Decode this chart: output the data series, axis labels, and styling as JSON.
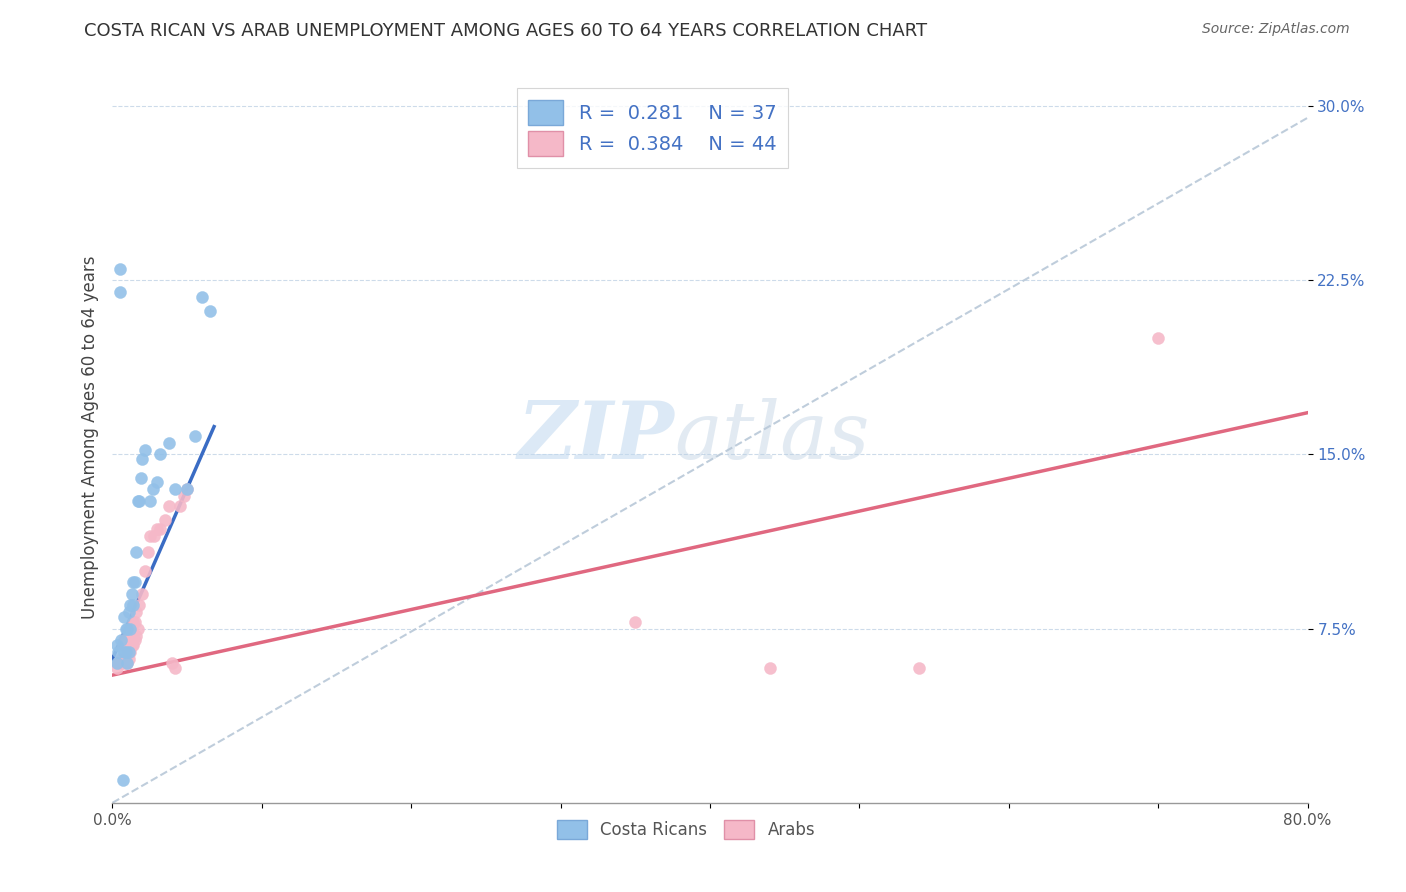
{
  "title": "COSTA RICAN VS ARAB UNEMPLOYMENT AMONG AGES 60 TO 64 YEARS CORRELATION CHART",
  "source": "Source: ZipAtlas.com",
  "ylabel": "Unemployment Among Ages 60 to 64 years",
  "xlim": [
    0.0,
    0.8
  ],
  "ylim": [
    0.0,
    0.315
  ],
  "yticks": [
    0.075,
    0.15,
    0.225,
    0.3
  ],
  "ytick_labels": [
    "7.5%",
    "15.0%",
    "22.5%",
    "30.0%"
  ],
  "watermark_zip": "ZIP",
  "watermark_atlas": "atlas",
  "costa_rican_color": "#92c0e8",
  "arab_color": "#f5b8c8",
  "costa_rican_line_color": "#3a6cc4",
  "arab_line_color": "#e06880",
  "dashed_line_color": "#b8c8d8",
  "costa_rican_points_x": [
    0.003,
    0.003,
    0.004,
    0.005,
    0.005,
    0.006,
    0.007,
    0.008,
    0.008,
    0.009,
    0.009,
    0.01,
    0.01,
    0.011,
    0.011,
    0.012,
    0.012,
    0.013,
    0.014,
    0.014,
    0.015,
    0.016,
    0.017,
    0.018,
    0.019,
    0.02,
    0.022,
    0.025,
    0.027,
    0.03,
    0.032,
    0.038,
    0.042,
    0.05,
    0.055,
    0.06,
    0.065
  ],
  "costa_rican_points_y": [
    0.06,
    0.068,
    0.065,
    0.22,
    0.23,
    0.07,
    0.01,
    0.065,
    0.08,
    0.065,
    0.075,
    0.06,
    0.075,
    0.065,
    0.082,
    0.075,
    0.085,
    0.09,
    0.085,
    0.095,
    0.095,
    0.108,
    0.13,
    0.13,
    0.14,
    0.148,
    0.152,
    0.13,
    0.135,
    0.138,
    0.15,
    0.155,
    0.135,
    0.135,
    0.158,
    0.218,
    0.212
  ],
  "arab_points_x": [
    0.003,
    0.004,
    0.005,
    0.006,
    0.007,
    0.007,
    0.008,
    0.008,
    0.009,
    0.009,
    0.01,
    0.01,
    0.011,
    0.011,
    0.012,
    0.012,
    0.013,
    0.013,
    0.014,
    0.014,
    0.015,
    0.015,
    0.016,
    0.016,
    0.017,
    0.018,
    0.02,
    0.022,
    0.024,
    0.025,
    0.028,
    0.03,
    0.032,
    0.035,
    0.038,
    0.04,
    0.042,
    0.045,
    0.048,
    0.05,
    0.35,
    0.44,
    0.54,
    0.7
  ],
  "arab_points_y": [
    0.058,
    0.06,
    0.06,
    0.062,
    0.06,
    0.068,
    0.062,
    0.07,
    0.06,
    0.07,
    0.06,
    0.065,
    0.062,
    0.07,
    0.065,
    0.072,
    0.068,
    0.075,
    0.068,
    0.078,
    0.07,
    0.078,
    0.072,
    0.082,
    0.075,
    0.085,
    0.09,
    0.1,
    0.108,
    0.115,
    0.115,
    0.118,
    0.118,
    0.122,
    0.128,
    0.06,
    0.058,
    0.128,
    0.132,
    0.135,
    0.078,
    0.058,
    0.058,
    0.2
  ],
  "costa_rican_trend_x": [
    0.0,
    0.068
  ],
  "costa_rican_trend_y": [
    0.062,
    0.162
  ],
  "arab_trend_x": [
    0.0,
    0.8
  ],
  "arab_trend_y": [
    0.055,
    0.168
  ],
  "dashed_trend_x": [
    0.0,
    0.8
  ],
  "dashed_trend_y": [
    0.0,
    0.295
  ]
}
